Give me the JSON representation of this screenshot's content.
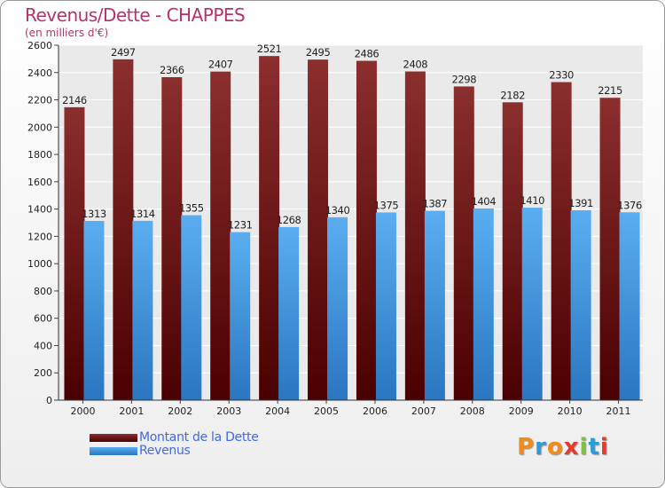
{
  "title": "Revenus/Dette - CHAPPES",
  "subtitle": "(en milliers d'€)",
  "colors": {
    "title": "#b5336a",
    "dette": "#7b1a1a",
    "revenus": "#3d8fdc",
    "legend_text": "#4169e1"
  },
  "legend": [
    {
      "label": "Montant de la Dette",
      "color": "#7b1a1a"
    },
    {
      "label": "Revenus",
      "color": "#3d8fdc"
    }
  ],
  "logo": {
    "letters": [
      "P",
      "r",
      "o",
      "x",
      "i",
      "t",
      "i"
    ],
    "colors": [
      "#f08c1c",
      "#2e9ad6",
      "#f08c1c",
      "#e53b2c",
      "#7cc242",
      "#2e9ad6",
      "#e53b2c"
    ]
  },
  "chart_data": {
    "type": "bar",
    "title": "Revenus/Dette - CHAPPES",
    "ylabel": "(en milliers d'€)",
    "xlabel": "",
    "categories": [
      "2000",
      "2001",
      "2002",
      "2003",
      "2004",
      "2005",
      "2006",
      "2007",
      "2008",
      "2009",
      "2010",
      "2011"
    ],
    "series": [
      {
        "name": "Montant de la Dette",
        "values": [
          2146,
          2497,
          2366,
          2407,
          2521,
          2495,
          2486,
          2408,
          2298,
          2182,
          2330,
          2215
        ]
      },
      {
        "name": "Revenus",
        "values": [
          1313,
          1314,
          1355,
          1231,
          1268,
          1340,
          1375,
          1387,
          1404,
          1410,
          1391,
          1376
        ]
      }
    ],
    "ylim": [
      0,
      2600
    ],
    "yticks": [
      0,
      200,
      400,
      600,
      800,
      1000,
      1200,
      1400,
      1600,
      1800,
      2000,
      2200,
      2400,
      2600
    ],
    "grid": true,
    "legend_position": "bottom-left"
  }
}
